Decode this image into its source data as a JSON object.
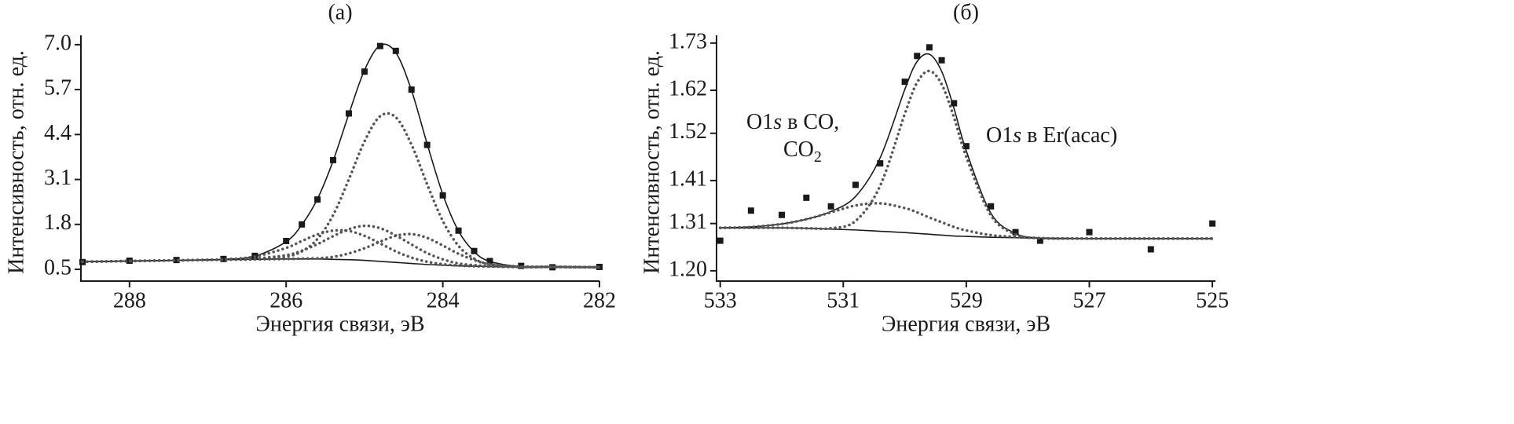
{
  "chart_data": [
    {
      "type": "line",
      "title": "(а)",
      "xlabel": "Энергия связи, эВ",
      "ylabel": "Интенсивность, отн. ед.",
      "xlim": [
        288.62,
        282
      ],
      "ylim": [
        0.16,
        7.27
      ],
      "xticks": [
        288,
        286,
        284,
        282
      ],
      "yticks": [
        0.5,
        1.8,
        3.1,
        4.4,
        5.7,
        {
          "value": 7,
          "label": "7.0"
        }
      ],
      "x": [
        288.6,
        288.0,
        287.4,
        286.8,
        286.4,
        286.0,
        285.8,
        285.6,
        285.4,
        285.2,
        285.0,
        284.8,
        284.6,
        284.4,
        284.2,
        284.0,
        283.8,
        283.6,
        283.4,
        283.0,
        282.6,
        282.0
      ],
      "series": [
        {
          "mark": "square",
          "color": "#1a1a1a",
          "values": [
            0.71,
            0.75,
            0.77,
            0.8,
            0.89,
            1.32,
            1.8,
            2.52,
            3.66,
            5.01,
            6.22,
            6.96,
            6.82,
            5.7,
            4.1,
            2.64,
            1.62,
            1.03,
            0.74,
            0.6,
            0.56,
            0.57
          ]
        },
        {
          "mark": "line",
          "color": "#1a1a1a",
          "values": [
            0.72,
            0.74,
            0.76,
            0.79,
            0.88,
            1.3,
            1.79,
            2.54,
            3.64,
            4.99,
            6.26,
            6.98,
            6.77,
            5.68,
            4.13,
            2.67,
            1.61,
            1.01,
            0.73,
            0.58,
            0.57,
            0.56
          ]
        },
        {
          "mark": "line",
          "color": "#1a1a1a",
          "values": [
            0.72,
            0.74,
            0.76,
            0.78,
            0.79,
            0.8,
            0.8,
            0.8,
            0.79,
            0.78,
            0.76,
            0.73,
            0.7,
            0.67,
            0.64,
            0.62,
            0.6,
            0.59,
            0.58,
            0.57,
            0.57,
            0.56
          ]
        },
        {
          "mark": "dots",
          "color": "#555555",
          "values": [
            0.72,
            0.74,
            0.76,
            0.78,
            0.79,
            0.87,
            1.02,
            1.38,
            2.07,
            3.1,
            4.2,
            4.93,
            4.9,
            4.11,
            2.96,
            1.9,
            1.18,
            0.81,
            0.65,
            0.57,
            0.57,
            0.56
          ]
        },
        {
          "mark": "dots",
          "color": "#555555",
          "values": [
            0.72,
            0.74,
            0.76,
            0.79,
            0.87,
            1.12,
            1.32,
            1.51,
            1.62,
            1.61,
            1.47,
            1.25,
            1.02,
            0.84,
            0.72,
            0.65,
            0.61,
            0.59,
            0.58,
            0.57,
            0.57,
            0.56
          ]
        },
        {
          "mark": "dots",
          "color": "#555555",
          "values": [
            0.72,
            0.74,
            0.76,
            0.78,
            0.81,
            0.91,
            1.04,
            1.23,
            1.46,
            1.66,
            1.76,
            1.69,
            1.48,
            1.22,
            0.97,
            0.79,
            0.67,
            0.62,
            0.59,
            0.57,
            0.57,
            0.56
          ]
        },
        {
          "mark": "dots",
          "color": "#555555",
          "values": [
            0.72,
            0.74,
            0.76,
            0.78,
            0.79,
            0.8,
            0.81,
            0.82,
            0.86,
            0.96,
            1.11,
            1.3,
            1.47,
            1.52,
            1.41,
            1.19,
            0.95,
            0.77,
            0.65,
            0.58,
            0.57,
            0.56
          ]
        }
      ]
    },
    {
      "type": "line",
      "title": "(б)",
      "xlabel": "Энергия связи, эВ",
      "ylabel": "Интенсивность, отн. ед.",
      "xlim": [
        533.06,
        524.95
      ],
      "ylim": [
        1.176,
        1.748
      ],
      "xticks": [
        533,
        531,
        529,
        527,
        525
      ],
      "yticks": [
        {
          "value": 1.2,
          "label": "1.20"
        },
        1.31,
        1.41,
        1.52,
        1.62,
        1.73
      ],
      "annotations": [
        [
          "O1",
          "s",
          " в CO,"
        ],
        [
          "CO",
          "2"
        ],
        [
          "O1",
          "s",
          " в Er(acac)"
        ]
      ],
      "x": [
        533,
        532.5,
        532,
        531.6,
        531.2,
        530.8,
        530.4,
        530.0,
        529.8,
        529.6,
        529.4,
        529.2,
        529.0,
        528.6,
        528.2,
        527.8,
        527.0,
        526.0,
        525.0
      ],
      "series": [
        {
          "mark": "square",
          "color": "#1a1a1a",
          "values": [
            1.27,
            1.34,
            1.33,
            1.37,
            1.35,
            1.4,
            1.45,
            1.64,
            1.7,
            1.72,
            1.69,
            1.59,
            1.49,
            1.35,
            1.29,
            1.27,
            1.29,
            1.25,
            1.31
          ]
        },
        {
          "mark": "line",
          "color": "#1a1a1a",
          "values": [
            1.3,
            1.302,
            1.309,
            1.32,
            1.338,
            1.373,
            1.463,
            1.622,
            1.687,
            1.704,
            1.664,
            1.578,
            1.479,
            1.334,
            1.287,
            1.276,
            1.275,
            1.275,
            1.275
          ]
        },
        {
          "mark": "line",
          "color": "#1a1a1a",
          "values": [
            1.3,
            1.3,
            1.3,
            1.299,
            1.297,
            1.295,
            1.292,
            1.289,
            1.287,
            1.285,
            1.283,
            1.281,
            1.28,
            1.278,
            1.277,
            1.276,
            1.275,
            1.275,
            1.275
          ]
        },
        {
          "mark": "dots",
          "color": "#555555",
          "values": [
            1.3,
            1.302,
            1.309,
            1.32,
            1.336,
            1.352,
            1.357,
            1.346,
            1.336,
            1.324,
            1.313,
            1.302,
            1.294,
            1.283,
            1.279,
            1.276,
            1.275,
            1.275,
            1.275
          ]
        },
        {
          "mark": "dots",
          "color": "#555555",
          "values": [
            1.3,
            1.3,
            1.3,
            1.299,
            1.299,
            1.316,
            1.398,
            1.565,
            1.638,
            1.665,
            1.634,
            1.557,
            1.465,
            1.329,
            1.285,
            1.276,
            1.275,
            1.275,
            1.275
          ]
        }
      ]
    }
  ]
}
